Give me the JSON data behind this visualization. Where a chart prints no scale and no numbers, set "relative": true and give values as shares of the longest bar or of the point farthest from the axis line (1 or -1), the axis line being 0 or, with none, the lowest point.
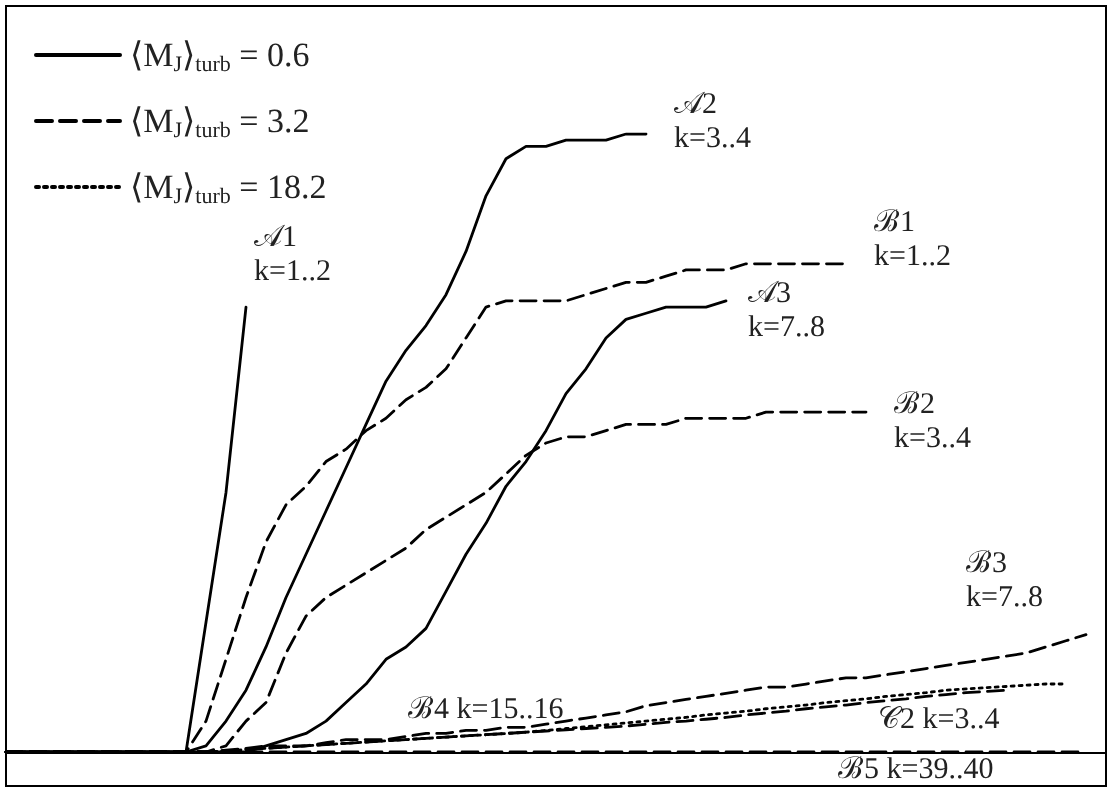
{
  "chart_data": {
    "type": "line",
    "relative": true,
    "marker": "none",
    "legend": "top left",
    "grid": false,
    "categories": [
      null,
      null,
      null,
      null,
      null,
      null,
      null,
      null,
      null,
      null,
      null,
      null,
      null,
      null,
      null,
      null,
      null,
      null,
      null,
      null,
      null,
      null,
      null,
      null,
      null,
      null,
      null,
      null,
      null,
      null,
      null,
      null,
      null,
      null,
      null,
      null,
      null,
      null,
      null,
      null,
      null,
      null,
      null,
      null,
      null,
      null,
      null,
      null,
      null,
      null,
      null,
      null,
      null,
      null,
      null,
      null
    ],
    "series": [
      {
        "name": "⟨M$_{J}$⟩$_{turb}$ = 0.6",
        "color": "#000000",
        "line_style": "solid",
        "values": [
          null,
          null,
          null,
          null,
          null,
          null,
          null,
          null,
          null,
          null,
          null,
          null,
          null,
          null,
          null,
          null,
          null,
          null,
          null,
          null,
          null,
          null,
          null,
          null,
          null,
          null,
          null,
          null,
          null,
          null,
          null,
          null,
          null,
          null,
          null,
          null,
          null,
          null,
          null,
          null,
          null,
          null,
          null,
          null,
          null,
          null,
          null,
          null,
          null,
          null,
          null,
          null,
          null,
          null,
          null,
          null
        ]
      },
      {
        "name": "⟨M$_{J}$⟩$_{turb}$ = 3.2",
        "color": "#000000",
        "line_style": "dashed",
        "values": [
          null,
          null,
          null,
          null,
          null,
          null,
          null,
          null,
          null,
          null,
          null,
          null,
          null,
          null,
          null,
          null,
          null,
          null,
          null,
          null,
          null,
          null,
          null,
          null,
          null,
          null,
          null,
          null,
          null,
          null,
          null,
          null,
          null,
          null,
          null,
          null,
          null,
          null,
          null,
          null,
          null,
          null,
          null,
          null,
          null,
          null,
          null,
          null,
          null,
          null,
          null,
          null,
          null,
          null,
          null,
          null
        ]
      },
      {
        "name": "⟨M$_{J}$⟩$_{turb}$ = 18.2",
        "color": "#000000",
        "line_style": "dotted",
        "values": [
          null,
          null,
          null,
          null,
          null,
          null,
          null,
          null,
          null,
          null,
          null,
          null,
          null,
          null,
          null,
          null,
          null,
          null,
          null,
          null,
          null,
          null,
          null,
          null,
          null,
          null,
          null,
          null,
          null,
          null,
          null,
          null,
          null,
          null,
          null,
          null,
          null,
          null,
          null,
          null,
          null,
          null,
          null,
          null,
          null,
          null,
          null,
          null,
          null,
          null,
          null,
          null,
          null,
          null,
          null,
          null
        ]
      },
      {
        "name": "𝒜1\nk=1..2",
        "color": "#000000",
        "line_style": "solid",
        "values": [
          0,
          0,
          0,
          0,
          0,
          0,
          0,
          0,
          0,
          0,
          0.21,
          0.42,
          0.72,
          null,
          null,
          null,
          null,
          null,
          null,
          null,
          null,
          null,
          null,
          null,
          null,
          null,
          null,
          null,
          null,
          null,
          null,
          null,
          null,
          null,
          null,
          null,
          null,
          null,
          null,
          null,
          null,
          null,
          null,
          null,
          null,
          null,
          null,
          null,
          null,
          null,
          null,
          null,
          null,
          null,
          null,
          null
        ]
      },
      {
        "name": "𝒜2\nk=3..4",
        "color": "#000000",
        "line_style": "solid",
        "values": [
          0,
          0,
          0,
          0,
          0,
          0,
          0,
          0,
          0,
          0,
          0.01,
          0.05,
          0.1,
          0.17,
          0.25,
          0.32,
          0.39,
          0.46,
          0.53,
          0.6,
          0.65,
          0.69,
          0.74,
          0.81,
          0.9,
          0.96,
          0.98,
          0.98,
          0.99,
          0.99,
          0.99,
          1.0,
          1.0,
          null,
          null,
          null,
          null,
          null,
          null,
          null,
          null,
          null,
          null,
          null,
          null,
          null,
          null,
          null,
          null,
          null,
          null,
          null,
          null,
          null,
          null,
          null
        ]
      },
      {
        "name": "ℬ1\nk=1..2",
        "color": "#000000",
        "line_style": "dashed",
        "values": [
          0,
          0,
          0,
          0,
          0,
          0,
          0,
          0,
          0,
          0,
          0.05,
          0.15,
          0.25,
          0.34,
          0.4,
          0.43,
          0.47,
          0.49,
          0.52,
          0.54,
          0.57,
          0.59,
          0.62,
          0.67,
          0.72,
          0.73,
          0.73,
          0.73,
          0.73,
          0.74,
          0.75,
          0.76,
          0.76,
          0.77,
          0.78,
          0.78,
          0.78,
          0.79,
          0.79,
          0.79,
          0.79,
          0.79,
          0.79,
          null,
          null,
          null,
          null,
          null,
          null,
          null,
          null,
          null,
          null,
          null,
          null,
          null
        ]
      },
      {
        "name": "𝒜3\nk=7..8",
        "color": "#000000",
        "line_style": "solid",
        "values": [
          0,
          0,
          0,
          0,
          0,
          0,
          0,
          0,
          0,
          0,
          0,
          0,
          0,
          0.01,
          0.02,
          0.03,
          0.05,
          0.08,
          0.11,
          0.15,
          0.17,
          0.2,
          0.26,
          0.32,
          0.37,
          0.43,
          0.47,
          0.52,
          0.58,
          0.62,
          0.67,
          0.7,
          0.71,
          0.72,
          0.72,
          0.72,
          0.73,
          null,
          null,
          null,
          null,
          null,
          null,
          null,
          null,
          null,
          null,
          null,
          null,
          null,
          null,
          null,
          null,
          null,
          null,
          null
        ]
      },
      {
        "name": "ℬ2\nk=3..4",
        "color": "#000000",
        "line_style": "dashed",
        "values": [
          0,
          0,
          0,
          0,
          0,
          0,
          0,
          0,
          0,
          0,
          0,
          0.01,
          0.05,
          0.08,
          0.16,
          0.22,
          0.25,
          0.27,
          0.29,
          0.31,
          0.33,
          0.36,
          0.38,
          0.4,
          0.42,
          0.45,
          0.48,
          0.5,
          0.51,
          0.51,
          0.52,
          0.53,
          0.53,
          0.53,
          0.54,
          0.54,
          0.54,
          0.54,
          0.55,
          0.55,
          0.55,
          0.55,
          0.55,
          0.55,
          null,
          null,
          null,
          null,
          null,
          null,
          null,
          null,
          null,
          null,
          null,
          null
        ]
      },
      {
        "name": "ℬ3\nk=7..8",
        "color": "#000000",
        "line_style": "dashed",
        "values": [
          0,
          0,
          0,
          0,
          0,
          0,
          0,
          0,
          0,
          0,
          0,
          0.003,
          0.006,
          0.01,
          0.01,
          0.01,
          0.015,
          0.02,
          0.02,
          0.02,
          0.025,
          0.03,
          0.03,
          0.035,
          0.035,
          0.04,
          0.04,
          0.045,
          0.05,
          0.055,
          0.06,
          0.065,
          0.075,
          0.08,
          0.085,
          0.09,
          0.095,
          0.1,
          0.105,
          0.105,
          0.11,
          0.115,
          0.12,
          0.12,
          0.125,
          0.13,
          0.135,
          0.14,
          0.145,
          0.15,
          0.155,
          0.16,
          0.17,
          0.18,
          0.19,
          null
        ]
      },
      {
        "name": "𝒞2 k=3..4",
        "color": "#000000",
        "line_style": "dotted",
        "values": [
          0,
          0,
          0,
          0,
          0,
          0,
          0,
          0,
          0,
          0,
          0,
          0.002,
          0.004,
          0.006,
          0.008,
          0.01,
          0.012,
          0.014,
          0.016,
          0.018,
          0.02,
          0.022,
          0.024,
          0.026,
          0.028,
          0.03,
          0.032,
          0.035,
          0.038,
          0.041,
          0.044,
          0.047,
          0.05,
          0.053,
          0.056,
          0.06,
          0.063,
          0.066,
          0.07,
          0.073,
          0.076,
          0.08,
          0.083,
          0.086,
          0.09,
          0.093,
          0.096,
          0.1,
          0.102,
          0.104,
          0.106,
          0.108,
          0.11,
          0.11,
          null,
          null
        ]
      },
      {
        "name": "ℬ4 k=15..16",
        "color": "#000000",
        "line_style": "dashed",
        "values": [
          0,
          0,
          0,
          0,
          0,
          0,
          0,
          0,
          0,
          0,
          0,
          0.002,
          0.004,
          0.006,
          0.008,
          0.01,
          0.012,
          0.014,
          0.016,
          0.018,
          0.02,
          0.022,
          0.024,
          0.026,
          0.028,
          0.03,
          0.032,
          0.034,
          0.036,
          0.038,
          0.04,
          0.042,
          0.045,
          0.048,
          0.05,
          0.053,
          0.056,
          0.06,
          0.063,
          0.066,
          0.07,
          0.073,
          0.076,
          0.08,
          0.083,
          0.086,
          0.09,
          0.093,
          0.096,
          0.098,
          0.1,
          null,
          null,
          null,
          null,
          null
        ]
      },
      {
        "name": "ℬ5 k=39..40",
        "color": "#000000",
        "line_style": "dashed",
        "values": [
          0,
          0,
          0,
          0,
          0,
          0,
          0,
          0,
          0,
          0,
          0,
          0,
          0,
          0,
          0,
          0,
          0,
          0,
          0,
          0,
          0,
          0,
          0,
          0,
          0,
          0,
          0,
          0,
          0,
          0,
          0,
          0,
          0,
          0,
          0,
          0,
          0,
          0,
          0,
          0,
          0,
          0,
          0,
          0,
          0,
          0,
          0,
          0,
          0,
          0,
          0,
          0,
          0,
          0,
          0,
          null
        ]
      }
    ]
  }
}
